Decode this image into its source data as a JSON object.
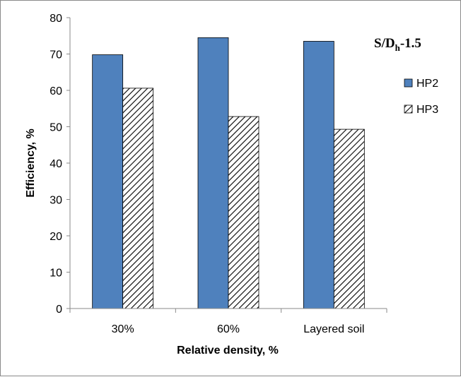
{
  "chart_data": {
    "type": "bar",
    "categories": [
      "30%",
      "60%",
      "Layered soil"
    ],
    "series": [
      {
        "name": "HP2",
        "values": [
          69.8,
          74.5,
          73.5
        ],
        "fill": "solid",
        "color": "#4f81bd"
      },
      {
        "name": "HP3",
        "values": [
          60.6,
          52.8,
          49.3
        ],
        "fill": "diagonal-hatch",
        "color": "#000000"
      }
    ],
    "title": "",
    "xlabel": "Relative density, %",
    "ylabel": "Efficiency, %",
    "ylim": [
      0,
      80
    ],
    "yticks": [
      0,
      10,
      20,
      30,
      40,
      50,
      60,
      70,
      80
    ],
    "grid": false,
    "legend_position": "right",
    "annotation": {
      "main": "S/D",
      "sub": "h",
      "suffix": "-1.5"
    }
  }
}
